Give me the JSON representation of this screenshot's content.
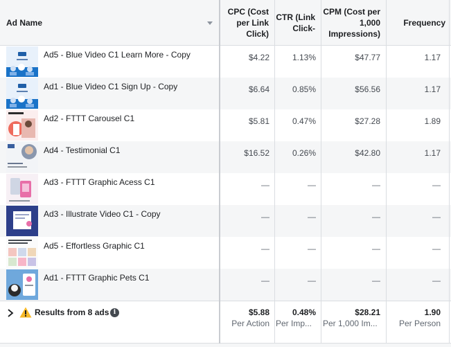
{
  "columns": {
    "ad_name": "Ad Name",
    "cpc": "CPC (Cost per Link Click)",
    "ctr": "CTR (Link Click-",
    "cpm": "CPM (Cost per 1,000 Impressions)",
    "frequency": "Frequency"
  },
  "rows": [
    {
      "name": "Ad5 - Blue Video C1 Learn More - Copy",
      "cpc": "$4.22",
      "ctr": "1.13%",
      "cpm": "$47.77",
      "frequency": "1.17",
      "thumb": "blue-video"
    },
    {
      "name": "Ad1 - Blue Video C1 Sign Up - Copy",
      "cpc": "$6.64",
      "ctr": "0.85%",
      "cpm": "$56.56",
      "frequency": "1.17",
      "thumb": "blue-video"
    },
    {
      "name": "Ad2 - FTTT Carousel C1",
      "cpc": "$5.81",
      "ctr": "0.47%",
      "cpm": "$27.28",
      "frequency": "1.89",
      "thumb": "carousel"
    },
    {
      "name": "Ad4 - Testimonial C1",
      "cpc": "$16.52",
      "ctr": "0.26%",
      "cpm": "$42.80",
      "frequency": "1.17",
      "thumb": "testimonial"
    },
    {
      "name": "Ad3 - FTTT Graphic Acess C1",
      "cpc": "—",
      "ctr": "—",
      "cpm": "—",
      "frequency": "—",
      "thumb": "graphic-access"
    },
    {
      "name": "Ad3 - Illustrate Video C1 - Copy",
      "cpc": "—",
      "ctr": "—",
      "cpm": "—",
      "frequency": "—",
      "thumb": "illustrate-video"
    },
    {
      "name": "Ad5 - Effortless Graphic C1",
      "cpc": "—",
      "ctr": "—",
      "cpm": "—",
      "frequency": "—",
      "thumb": "effortless"
    },
    {
      "name": "Ad1 - FTTT Graphic Pets C1",
      "cpc": "—",
      "ctr": "—",
      "cpm": "—",
      "frequency": "—",
      "thumb": "pets"
    }
  ],
  "footer": {
    "label": "Results from 8 ads",
    "cpc": "$5.88",
    "cpc_sub": "Per Action",
    "ctr": "0.48%",
    "ctr_sub": "Per Imp...",
    "cpm": "$28.21",
    "cpm_sub": "Per 1,000 Im...",
    "frequency": "1.90",
    "frequency_sub": "Per Person"
  },
  "icons": {
    "sort": "chevron-down-icon",
    "expand": "chevron-right-icon",
    "warning": "warning-icon",
    "info": "info-icon"
  },
  "colors": {
    "header_bg": "#f5f6f7",
    "alt_row_bg": "#f5f6f7",
    "border": "#dadde1",
    "warning": "#f7b928",
    "text": "#1c1e21"
  }
}
